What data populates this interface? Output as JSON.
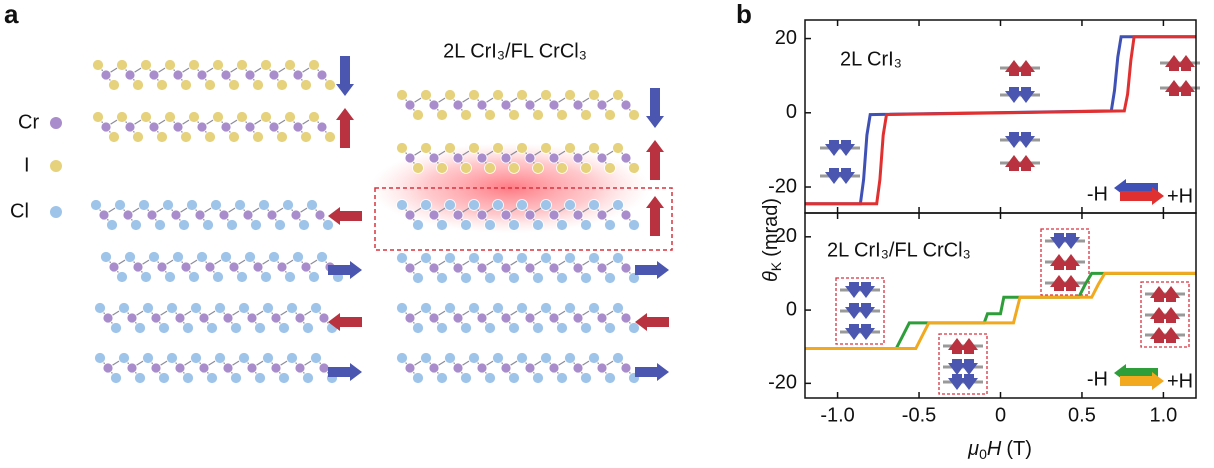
{
  "panel_a": {
    "label": "a",
    "legend": [
      "Cr",
      "I",
      "Cl"
    ],
    "title": "2L CrI₃/FL CrCl₃"
  },
  "panel_b": {
    "label": "b",
    "y_label": {
      "symbol": "θ",
      "subscript": "K",
      "unit": "(mrad)"
    },
    "x_label": {
      "symbol": "μ",
      "subscript": "0",
      "variable": "H",
      "unit": "(T)"
    }
  },
  "chart_data": [
    {
      "type": "line",
      "title": "2L CrI₃",
      "xlim": [
        -1.2,
        1.2
      ],
      "ylim": [
        -27,
        25
      ],
      "yticks": [
        -20,
        0,
        20
      ],
      "series": [
        {
          "name": "-H",
          "color": "#3f51b5",
          "x": [
            -1.2,
            -0.86,
            -0.84,
            -0.82,
            -0.8,
            0.68,
            0.7,
            0.72,
            0.74,
            1.2
          ],
          "values": [
            -24.5,
            -24.5,
            -18,
            -6,
            -0.5,
            0.5,
            6,
            15,
            20.5,
            20.5
          ]
        },
        {
          "name": "+H",
          "color": "#e03030",
          "x": [
            -1.2,
            -0.76,
            -0.74,
            -0.72,
            -0.7,
            0.76,
            0.78,
            0.8,
            0.82,
            1.2
          ],
          "values": [
            -24.5,
            -24.5,
            -18,
            -6,
            -0.5,
            0.5,
            5,
            14,
            20.5,
            20.5
          ]
        }
      ]
    },
    {
      "type": "line",
      "title": "2L CrI₃/FL CrCl₃",
      "xlim": [
        -1.2,
        1.2
      ],
      "ylim": [
        -24,
        26.5
      ],
      "yticks": [
        -20,
        0,
        20
      ],
      "xticks": [
        {
          "value": -1,
          "label": "-1.0"
        },
        -0.5,
        0,
        0.5,
        {
          "value": 1,
          "label": "1.0"
        }
      ],
      "series": [
        {
          "name": "-H",
          "color": "#2e9e3a",
          "x": [
            -1.2,
            -0.64,
            -0.6,
            -0.56,
            -0.1,
            -0.08,
            0.0,
            0.02,
            0.48,
            0.52,
            0.56,
            1.2
          ],
          "values": [
            -10.5,
            -10.5,
            -7,
            -3.5,
            -3.5,
            -1,
            -1,
            3.5,
            3.5,
            7,
            10,
            10
          ]
        },
        {
          "name": "+H",
          "color": "#f2a91e",
          "x": [
            -1.2,
            -0.52,
            -0.48,
            -0.44,
            0.08,
            0.12,
            0.56,
            0.6,
            0.64,
            1.2
          ],
          "values": [
            -10.5,
            -10.5,
            -7,
            -3.5,
            -3.5,
            3.5,
            3.5,
            7,
            10,
            10
          ]
        }
      ]
    }
  ]
}
